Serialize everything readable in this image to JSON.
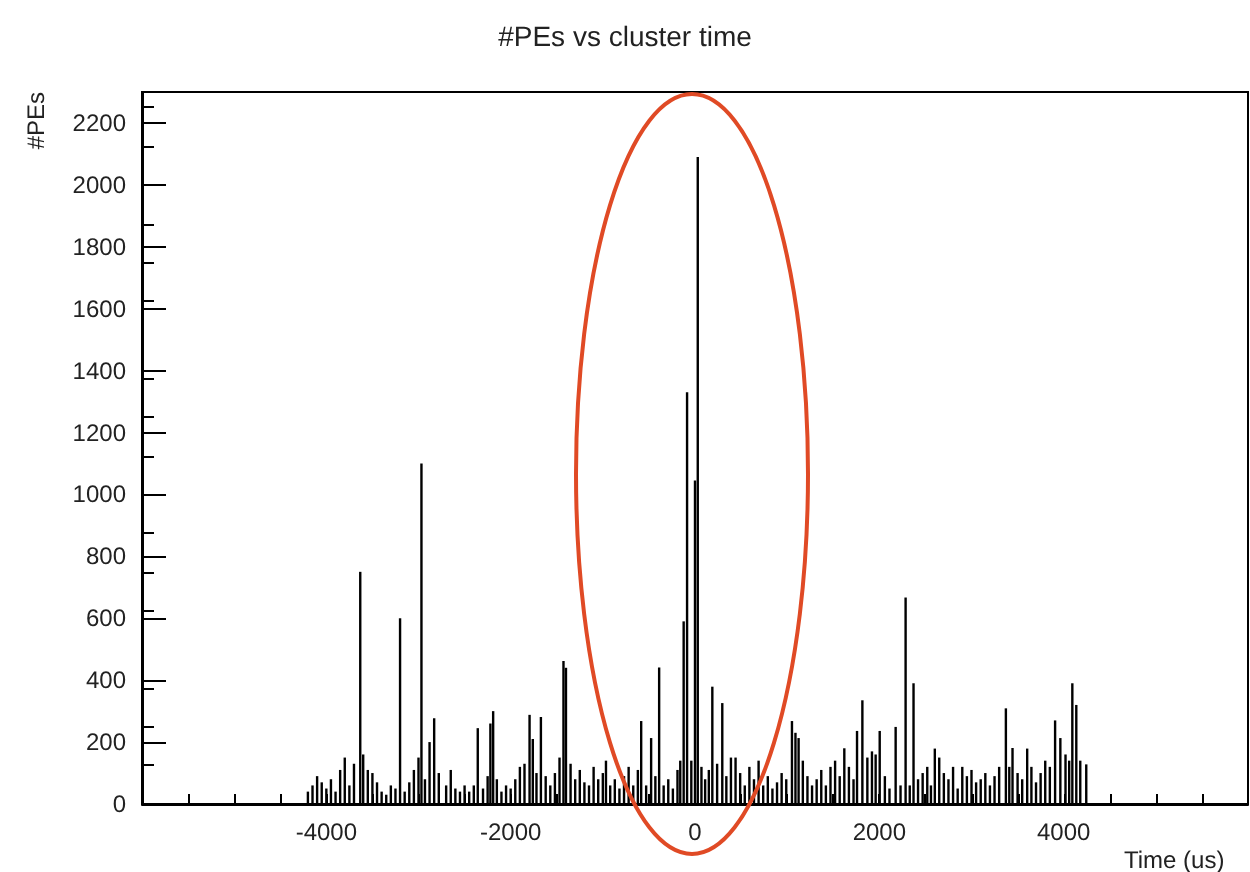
{
  "chart_data": {
    "type": "bar",
    "title": "#PEs vs cluster time",
    "xlabel": "Time (us)",
    "ylabel": "#PEs",
    "color": "#000000",
    "xlim": [
      -6000,
      6000
    ],
    "xticks": [
      {
        "value": -5500,
        "label": null
      },
      {
        "value": -5000,
        "label": null
      },
      {
        "value": -4500,
        "label": null
      },
      -4000,
      {
        "value": -3500,
        "label": null
      },
      {
        "value": -3000,
        "label": null
      },
      {
        "value": -2500,
        "label": null
      },
      -2000,
      {
        "value": -1500,
        "label": null
      },
      {
        "value": -1000,
        "label": null
      },
      {
        "value": -500,
        "label": null
      },
      0,
      {
        "value": 500,
        "label": null
      },
      {
        "value": 1000,
        "label": null
      },
      {
        "value": 1500,
        "label": null
      },
      2000,
      {
        "value": 2500,
        "label": null
      },
      {
        "value": 3000,
        "label": null
      },
      {
        "value": 3500,
        "label": null
      },
      4000,
      {
        "value": 4500,
        "label": null
      },
      {
        "value": 5000,
        "label": null
      },
      {
        "value": 5500,
        "label": null
      }
    ],
    "ylim": [
      0,
      2300
    ],
    "yticks": [
      0,
      200,
      400,
      600,
      800,
      1000,
      1200,
      1400,
      1600,
      1800,
      2000,
      2200
    ],
    "x": [
      -4200,
      -4150,
      -4100,
      -4050,
      -4000,
      -3950,
      -3900,
      -3850,
      -3800,
      -3750,
      -3700,
      -3632,
      -3600,
      -3550,
      -3500,
      -3450,
      -3400,
      -3350,
      -3300,
      -3250,
      -3200,
      -3150,
      -3100,
      -3050,
      -3000,
      -2968,
      -2930,
      -2880,
      -2830,
      -2780,
      -2700,
      -2650,
      -2600,
      -2550,
      -2500,
      -2450,
      -2400,
      -2357,
      -2300,
      -2250,
      -2220,
      -2190,
      -2150,
      -2100,
      -2050,
      -2000,
      -1950,
      -1900,
      -1850,
      -1795,
      -1760,
      -1720,
      -1672,
      -1620,
      -1570,
      -1520,
      -1470,
      -1427,
      -1400,
      -1350,
      -1300,
      -1250,
      -1200,
      -1150,
      -1100,
      -1050,
      -1000,
      -966,
      -920,
      -870,
      -820,
      -770,
      -720,
      -670,
      -620,
      -584,
      -530,
      -476,
      -430,
      -389,
      -340,
      -290,
      -240,
      -190,
      -160,
      -123,
      -86,
      -40,
      0,
      30,
      70,
      110,
      150,
      188,
      240,
      296,
      340,
      390,
      440,
      490,
      540,
      590,
      640,
      690,
      740,
      790,
      840,
      890,
      940,
      990,
      1052,
      1090,
      1124,
      1170,
      1220,
      1270,
      1320,
      1370,
      1420,
      1470,
      1520,
      1570,
      1620,
      1670,
      1720,
      1758,
      1816,
      1870,
      1920,
      1960,
      2004,
      2060,
      2110,
      2177,
      2230,
      2285,
      2330,
      2371,
      2420,
      2470,
      2520,
      2560,
      2602,
      2650,
      2700,
      2750,
      2800,
      2850,
      2900,
      2950,
      3000,
      3050,
      3100,
      3150,
      3200,
      3250,
      3300,
      3373,
      3410,
      3445,
      3500,
      3550,
      3604,
      3650,
      3700,
      3750,
      3800,
      3850,
      3907,
      3964,
      4020,
      4060,
      4094,
      4137,
      4180,
      4245
    ],
    "values": [
      40,
      60,
      90,
      70,
      50,
      80,
      40,
      110,
      150,
      60,
      130,
      750,
      160,
      110,
      100,
      70,
      40,
      30,
      60,
      50,
      600,
      40,
      70,
      110,
      150,
      1100,
      80,
      200,
      277,
      100,
      60,
      110,
      50,
      40,
      60,
      40,
      60,
      245,
      50,
      90,
      260,
      300,
      80,
      40,
      60,
      50,
      80,
      120,
      130,
      288,
      210,
      100,
      281,
      90,
      60,
      100,
      150,
      462,
      440,
      130,
      80,
      110,
      70,
      60,
      120,
      80,
      100,
      140,
      60,
      80,
      50,
      90,
      120,
      60,
      110,
      268,
      60,
      213,
      90,
      441,
      60,
      80,
      50,
      110,
      140,
      590,
      1330,
      140,
      1045,
      2090,
      120,
      80,
      110,
      379,
      130,
      326,
      90,
      150,
      150,
      100,
      60,
      120,
      80,
      140,
      60,
      90,
      50,
      70,
      100,
      80,
      268,
      230,
      213,
      140,
      90,
      60,
      80,
      110,
      60,
      120,
      140,
      90,
      180,
      120,
      80,
      236,
      335,
      150,
      170,
      160,
      236,
      90,
      50,
      249,
      60,
      667,
      60,
      390,
      80,
      100,
      120,
      60,
      179,
      150,
      100,
      80,
      120,
      50,
      120,
      90,
      110,
      70,
      80,
      100,
      60,
      90,
      120,
      309,
      120,
      181,
      100,
      80,
      179,
      120,
      70,
      100,
      140,
      120,
      270,
      213,
      160,
      140,
      390,
      320,
      140,
      128
    ],
    "grid": false
  }
}
